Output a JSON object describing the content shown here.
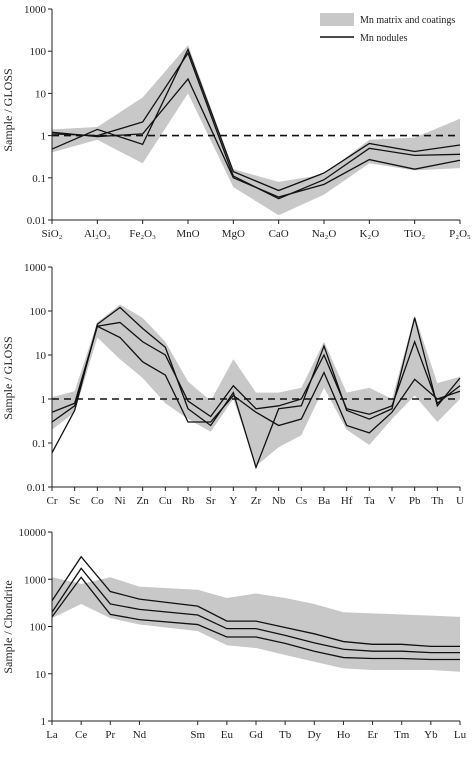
{
  "legend": {
    "items": [
      {
        "label": "Mn matrix and coatings",
        "kind": "band",
        "color": "#c8c8c8"
      },
      {
        "label": "Mn nodules",
        "kind": "line",
        "color": "#111111"
      }
    ]
  },
  "chart_data": [
    {
      "type": "line",
      "scale": "log",
      "ylabel": "Sample / GLOSS",
      "ylim": [
        0.01,
        1000
      ],
      "yticks": [
        "0.01",
        "0.1",
        "1",
        "10",
        "100",
        "1000"
      ],
      "categories": [
        "SiO₂",
        "Al₂O₃",
        "Fe₂O₃",
        "MnO",
        "MgO",
        "CaO",
        "Na₂O",
        "K₂O",
        "TiO₂",
        "P₂O₅"
      ],
      "reference_line": 1,
      "band": {
        "name": "Mn matrix and coatings",
        "upper": [
          1.4,
          1.6,
          8,
          140,
          0.16,
          0.08,
          0.12,
          0.8,
          0.9,
          2.5
        ],
        "lower": [
          0.4,
          0.8,
          0.22,
          10,
          0.06,
          0.013,
          0.04,
          0.22,
          0.15,
          0.17
        ]
      },
      "series": [
        {
          "values": [
            0.48,
            1.4,
            0.62,
            110,
            0.14,
            0.05,
            0.13,
            0.65,
            0.42,
            0.6
          ]
        },
        {
          "values": [
            1.1,
            1.0,
            2.1,
            90,
            0.11,
            0.032,
            0.09,
            0.5,
            0.34,
            0.36
          ]
        },
        {
          "values": [
            1.2,
            0.95,
            1.1,
            22,
            0.1,
            0.035,
            0.07,
            0.27,
            0.16,
            0.26
          ]
        }
      ]
    },
    {
      "type": "line",
      "scale": "log",
      "ylabel": "Sample / GLOSS",
      "ylim": [
        0.01,
        1000
      ],
      "yticks": [
        "0.01",
        "0.1",
        "1",
        "10",
        "100",
        "1000"
      ],
      "categories": [
        "Cr",
        "Sc",
        "Co",
        "Ni",
        "Zn",
        "Cu",
        "Rb",
        "Sr",
        "Y",
        "Zr",
        "Nb",
        "Cs",
        "Ba",
        "Hf",
        "Ta",
        "V",
        "Pb",
        "Th",
        "U"
      ],
      "reference_line": 1,
      "band": {
        "name": "Mn matrix and coatings",
        "upper": [
          1.1,
          1.5,
          55,
          140,
          70,
          20,
          2.5,
          0.9,
          8,
          1.4,
          1.4,
          1.8,
          20,
          1.4,
          1.8,
          1.0,
          80,
          2.3,
          3.2
        ],
        "lower": [
          0.2,
          0.5,
          25,
          8,
          3,
          0.8,
          0.35,
          0.18,
          1.0,
          0.03,
          0.08,
          0.15,
          1.8,
          0.2,
          0.09,
          0.35,
          1.2,
          0.3,
          1.0
        ]
      },
      "series": [
        {
          "values": [
            0.06,
            0.55,
            50,
            120,
            40,
            15,
            0.6,
            0.25,
            1.4,
            0.028,
            0.6,
            0.7,
            16,
            0.55,
            0.35,
            0.6,
            70,
            0.7,
            3.0
          ]
        },
        {
          "values": [
            0.3,
            0.7,
            45,
            55,
            20,
            10,
            0.9,
            0.4,
            2.0,
            0.6,
            0.7,
            1.0,
            10,
            0.6,
            0.45,
            0.7,
            20,
            0.8,
            2.0
          ]
        },
        {
          "values": [
            0.5,
            0.8,
            45,
            25,
            7,
            3.5,
            0.3,
            0.3,
            1.2,
            0.5,
            0.25,
            0.35,
            4,
            0.25,
            0.17,
            0.5,
            2.8,
            1.0,
            1.5
          ]
        }
      ]
    },
    {
      "type": "line",
      "scale": "log",
      "ylabel": "Sample / Chondrite",
      "ylim": [
        1,
        10000
      ],
      "yticks": [
        "1",
        "10",
        "100",
        "1000",
        "10000"
      ],
      "categories": [
        "La",
        "Ce",
        "Pr",
        "Nd",
        "Sm",
        "Eu",
        "Gd",
        "Tb",
        "Dy",
        "Ho",
        "Er",
        "Tm",
        "Yb",
        "Lu"
      ],
      "category_positions": [
        0,
        1,
        2,
        3,
        5,
        6,
        7,
        8,
        9,
        10,
        11,
        12,
        13,
        14
      ],
      "band": {
        "name": "Mn matrix and coatings",
        "upper": [
          1100,
          800,
          1100,
          700,
          600,
          400,
          500,
          400,
          300,
          200,
          190,
          180,
          170,
          160
        ],
        "lower": [
          150,
          300,
          150,
          110,
          80,
          40,
          35,
          25,
          18,
          13,
          12,
          12,
          12,
          11
        ]
      },
      "series": [
        {
          "values": [
            350,
            3000,
            550,
            380,
            270,
            130,
            130,
            95,
            70,
            48,
            42,
            42,
            38,
            38
          ]
        },
        {
          "values": [
            200,
            1700,
            300,
            230,
            175,
            90,
            90,
            65,
            45,
            33,
            30,
            30,
            28,
            28
          ]
        },
        {
          "values": [
            160,
            1100,
            180,
            140,
            110,
            60,
            60,
            44,
            30,
            22,
            21,
            21,
            20,
            20
          ]
        }
      ]
    }
  ]
}
